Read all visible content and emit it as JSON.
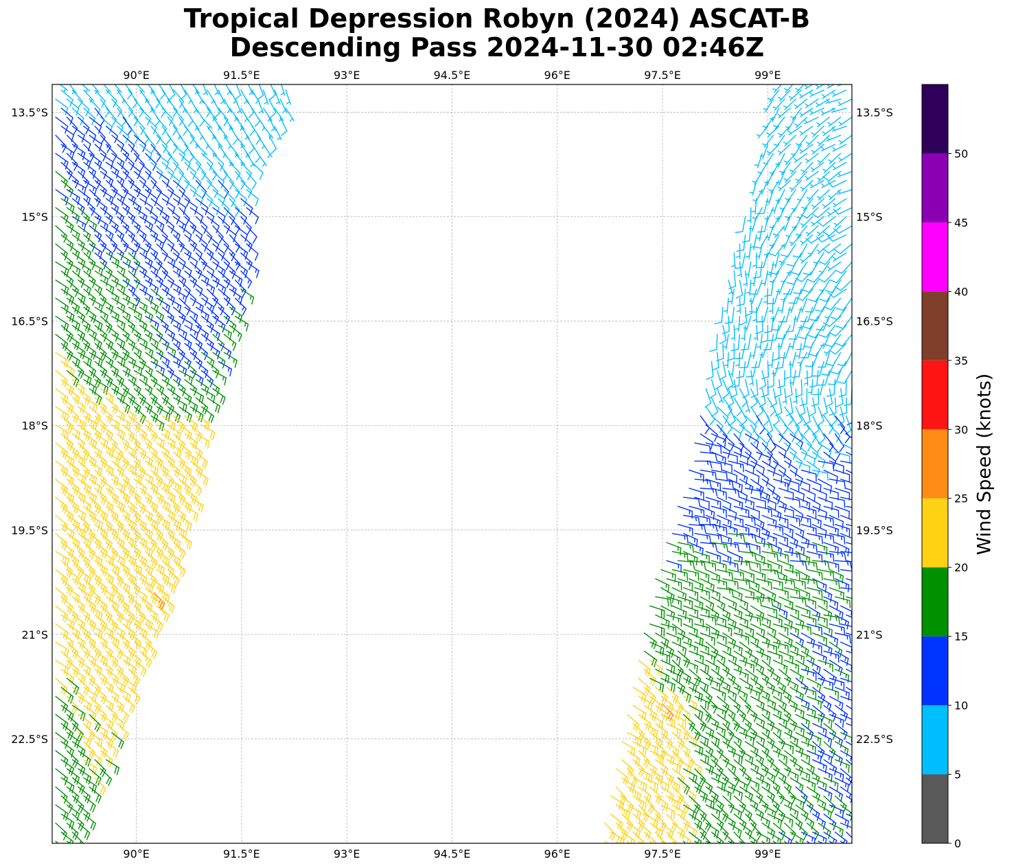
{
  "title": {
    "line1": "Tropical Depression Robyn (2024) ASCAT-B",
    "line2": "Descending Pass 2024-11-30 02:46Z"
  },
  "chart_data": {
    "type": "wind_barbs",
    "extent": {
      "lon_min": 88.8,
      "lon_max": 100.2,
      "lat_min": -24.0,
      "lat_max": -13.1
    },
    "grid": true,
    "x_ticks": [
      {
        "value": 90.0,
        "label": "90°E"
      },
      {
        "value": 91.5,
        "label": "91.5°E"
      },
      {
        "value": 93.0,
        "label": "93°E"
      },
      {
        "value": 94.5,
        "label": "94.5°E"
      },
      {
        "value": 96.0,
        "label": "96°E"
      },
      {
        "value": 97.5,
        "label": "97.5°E"
      },
      {
        "value": 99.0,
        "label": "99°E"
      }
    ],
    "y_ticks": [
      {
        "value": -13.5,
        "label": "13.5°S"
      },
      {
        "value": -15.0,
        "label": "15°S"
      },
      {
        "value": -16.5,
        "label": "16.5°S"
      },
      {
        "value": -18.0,
        "label": "18°S"
      },
      {
        "value": -19.5,
        "label": "19.5°S"
      },
      {
        "value": -21.0,
        "label": "21°S"
      },
      {
        "value": -22.5,
        "label": "22.5°S"
      }
    ],
    "colorbar": {
      "label": "Wind Speed (knots)",
      "min": 0,
      "max": 55,
      "bounds": [
        0,
        5,
        10,
        15,
        20,
        25,
        30,
        35,
        40,
        45,
        50,
        55
      ],
      "tick_labels": [
        "0",
        "5",
        "10",
        "15",
        "20",
        "25",
        "30",
        "35",
        "40",
        "45",
        "50"
      ],
      "colors": [
        "#595959",
        "#00bfff",
        "#0033ff",
        "#009100",
        "#ffd214",
        "#ff8c14",
        "#ff1414",
        "#7f3f2a",
        "#ff00ff",
        "#8c00b4",
        "#2e005a"
      ]
    },
    "swaths": [
      {
        "name": "west",
        "lat_start": -13.05,
        "lat_end": -24.2,
        "lat_step": 0.13,
        "lon_west": 88.85,
        "col_step": 0.16,
        "east_edge": [
          [
            -13.0,
            92.2
          ],
          [
            -13.6,
            92.2
          ],
          [
            -14.4,
            91.6
          ],
          [
            -15.5,
            91.6
          ],
          [
            -16.5,
            91.4
          ],
          [
            -17.8,
            91.0
          ],
          [
            -19.0,
            90.8
          ],
          [
            -20.5,
            90.4
          ],
          [
            -21.5,
            90.0
          ],
          [
            -22.5,
            89.7
          ],
          [
            -23.5,
            89.3
          ],
          [
            -24.2,
            89.1
          ]
        ],
        "speed_zones": [
          {
            "lat": -13.0,
            "pts": [
              [
                88.8,
                7
              ],
              [
                92.2,
                7
              ]
            ]
          },
          {
            "lat": -14.0,
            "pts": [
              [
                88.8,
                14
              ],
              [
                89.8,
                12
              ],
              [
                90.6,
                8
              ],
              [
                91.3,
                7
              ]
            ]
          },
          {
            "lat": -15.0,
            "pts": [
              [
                88.8,
                16
              ],
              [
                89.5,
                14
              ],
              [
                90.5,
                12
              ],
              [
                91.6,
                11
              ]
            ]
          },
          {
            "lat": -16.5,
            "pts": [
              [
                88.8,
                19
              ],
              [
                90.0,
                16
              ],
              [
                90.6,
                13
              ],
              [
                91.4,
                16
              ]
            ]
          },
          {
            "lat": -17.2,
            "pts": [
              [
                88.8,
                21
              ],
              [
                89.6,
                18
              ],
              [
                90.4,
                14
              ],
              [
                91.2,
                16
              ]
            ]
          },
          {
            "lat": -18.0,
            "pts": [
              [
                88.8,
                23
              ],
              [
                90.0,
                22
              ],
              [
                91.0,
                21
              ]
            ]
          },
          {
            "lat": -20.0,
            "pts": [
              [
                88.8,
                23
              ],
              [
                90.4,
                24
              ]
            ]
          },
          {
            "lat": -21.5,
            "pts": [
              [
                88.8,
                21
              ],
              [
                90.0,
                22
              ]
            ]
          },
          {
            "lat": -22.3,
            "pts": [
              [
                88.8,
                18
              ],
              [
                89.5,
                21
              ]
            ]
          },
          {
            "lat": -24.2,
            "pts": [
              [
                88.8,
                17
              ],
              [
                89.3,
                18
              ]
            ]
          }
        ],
        "dir_zones": [
          {
            "lat": -13.0,
            "pts": [
              [
                88.8,
                135
              ],
              [
                92.2,
                160
              ]
            ]
          },
          {
            "lat": -14.5,
            "pts": [
              [
                88.8,
                125
              ],
              [
                91.6,
                135
              ]
            ]
          },
          {
            "lat": -17.0,
            "pts": [
              [
                88.8,
                125
              ],
              [
                91.4,
                125
              ]
            ]
          },
          {
            "lat": -20.0,
            "pts": [
              [
                88.8,
                128
              ],
              [
                90.6,
                125
              ]
            ]
          },
          {
            "lat": -24.2,
            "pts": [
              [
                88.8,
                130
              ],
              [
                89.5,
                128
              ]
            ]
          }
        ]
      },
      {
        "name": "east",
        "lat_start": -13.05,
        "lat_end": -24.2,
        "lat_step": 0.13,
        "lon_east": 100.2,
        "col_step": 0.16,
        "west_edge": [
          [
            -13.0,
            99.1
          ],
          [
            -14.5,
            98.8
          ],
          [
            -15.5,
            98.5
          ],
          [
            -16.5,
            98.3
          ],
          [
            -17.5,
            98.1
          ],
          [
            -18.5,
            97.9
          ],
          [
            -19.5,
            97.6
          ],
          [
            -20.5,
            97.3
          ],
          [
            -21.5,
            97.1
          ],
          [
            -22.5,
            96.9
          ],
          [
            -23.5,
            96.7
          ],
          [
            -24.2,
            96.6
          ]
        ],
        "speed_zones": [
          {
            "lat": -13.0,
            "pts": [
              [
                98.5,
                6
              ],
              [
                100.2,
                6
              ]
            ]
          },
          {
            "lat": -17.5,
            "pts": [
              [
                97.8,
                8
              ],
              [
                99.5,
                8
              ],
              [
                100.2,
                9
              ]
            ]
          },
          {
            "lat": -18.3,
            "pts": [
              [
                97.8,
                12
              ],
              [
                99.0,
                11
              ],
              [
                99.6,
                9
              ],
              [
                100.2,
                11
              ]
            ]
          },
          {
            "lat": -19.5,
            "pts": [
              [
                97.6,
                14
              ],
              [
                98.8,
                14
              ],
              [
                100.2,
                13
              ]
            ]
          },
          {
            "lat": -20.0,
            "pts": [
              [
                97.3,
                16
              ],
              [
                98.8,
                16
              ],
              [
                100.2,
                15
              ]
            ]
          },
          {
            "lat": -21.2,
            "pts": [
              [
                97.1,
                21
              ],
              [
                97.6,
                17
              ],
              [
                98.8,
                16
              ],
              [
                99.6,
                15
              ],
              [
                100.2,
                14
              ]
            ]
          },
          {
            "lat": -22.0,
            "pts": [
              [
                96.9,
                22
              ],
              [
                97.6,
                22
              ],
              [
                98.2,
                17
              ],
              [
                99.2,
                16
              ],
              [
                100.2,
                14
              ]
            ]
          },
          {
            "lat": -23.0,
            "pts": [
              [
                96.7,
                23
              ],
              [
                97.6,
                22
              ],
              [
                98.2,
                17
              ],
              [
                99.4,
                16
              ],
              [
                100.2,
                14
              ]
            ]
          },
          {
            "lat": -24.2,
            "pts": [
              [
                96.6,
                22
              ],
              [
                97.4,
                22
              ],
              [
                98.0,
                17
              ],
              [
                99.5,
                15
              ],
              [
                100.2,
                13
              ]
            ]
          }
        ],
        "dir_zones": [
          {
            "lat": -13.0,
            "pts": [
              [
                98.5,
                200
              ],
              [
                100.2,
                250
              ]
            ]
          },
          {
            "lat": -15.5,
            "pts": [
              [
                98.4,
                170
              ],
              [
                99.3,
                210
              ],
              [
                100.2,
                235
              ]
            ]
          },
          {
            "lat": -17.0,
            "pts": [
              [
                98.2,
                180
              ],
              [
                99.3,
                190
              ],
              [
                100.2,
                215
              ]
            ]
          },
          {
            "lat": -18.5,
            "pts": [
              [
                97.9,
                95
              ],
              [
                99.0,
                120
              ],
              [
                100.2,
                105
              ]
            ]
          },
          {
            "lat": -20.0,
            "pts": [
              [
                97.4,
                105
              ],
              [
                100.2,
                105
              ]
            ]
          },
          {
            "lat": -21.5,
            "pts": [
              [
                97.1,
                125
              ],
              [
                100.2,
                115
              ]
            ]
          },
          {
            "lat": -24.2,
            "pts": [
              [
                96.6,
                130
              ],
              [
                100.2,
                125
              ]
            ]
          }
        ]
      }
    ],
    "highlights": [
      {
        "lat": -20.4,
        "lon": 90.25,
        "speed": 27,
        "dir": 135
      },
      {
        "lat": -22.0,
        "lon": 97.5,
        "speed": 27,
        "dir": 135
      }
    ]
  }
}
